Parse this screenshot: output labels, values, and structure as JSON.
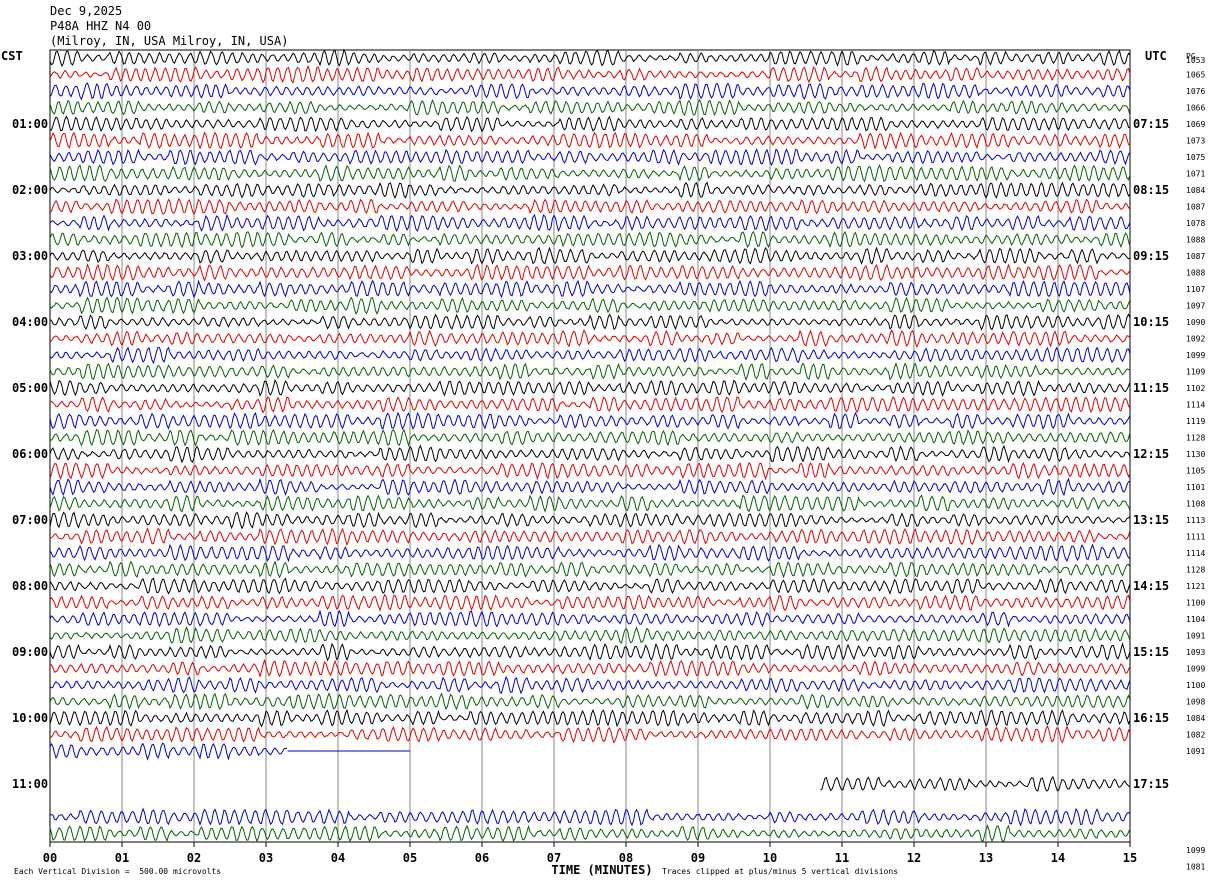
{
  "header": {
    "date": "Dec 9,2025",
    "station": "P48A HHZ N4 00",
    "location": "(Milroy, IN, USA Milroy, IN, USA)"
  },
  "left_zone_label": "CST",
  "right_zone_label": "UTC",
  "right_col_label": "PG",
  "footer": {
    "scale_note": "Each Vertical Division =  500.00 microvolts",
    "clip_note": "Traces clipped at plus/minus 5 vertical divisions"
  },
  "colors": {
    "black": "#000000",
    "red": "#e00000",
    "blue": "#0000c8",
    "green": "#006400",
    "grid": "#888888"
  },
  "chart_data": {
    "type": "line",
    "xlabel": "TIME (MINUTES)",
    "xlim": [
      0,
      15
    ],
    "x_ticks": [
      "00",
      "01",
      "02",
      "03",
      "04",
      "05",
      "06",
      "07",
      "08",
      "09",
      "10",
      "11",
      "12",
      "13",
      "14",
      "15"
    ],
    "minutes_per_trace": 15,
    "trace_color_cycle": [
      "black",
      "red",
      "blue",
      "green"
    ],
    "left_hour_labels": [
      "01:00",
      "02:00",
      "03:00",
      "04:00",
      "05:00",
      "06:00",
      "07:00",
      "08:00",
      "09:00",
      "10:00",
      "11:00"
    ],
    "right_hour_labels": [
      "07:15",
      "08:15",
      "09:15",
      "10:15",
      "11:15",
      "12:15",
      "13:15",
      "14:15",
      "15:15",
      "16:15",
      "17:15"
    ],
    "trace_values": [
      "1053",
      "1065",
      "1076",
      "1066",
      "1069",
      "1073",
      "1075",
      "1071",
      "1084",
      "1087",
      "1078",
      "1088",
      "1087",
      "1088",
      "1107",
      "1097",
      "1090",
      "1092",
      "1099",
      "1109",
      "1102",
      "1114",
      "1119",
      "1128",
      "1130",
      "1105",
      "1101",
      "1108",
      "1113",
      "1111",
      "1114",
      "1128",
      "1121",
      "1100",
      "1104",
      "1091",
      "1093",
      "1099",
      "1100",
      "1098",
      "1084",
      "1082",
      "1091",
      "",
      "",
      "",
      "",
      "",
      "1099",
      "1081"
    ]
  }
}
